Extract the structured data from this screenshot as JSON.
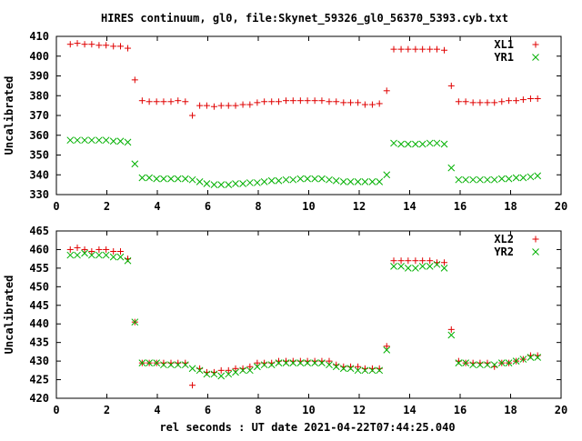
{
  "title": "HIRES continuum, gl0, file:Skynet_59326_gl0_56370_5393.cyb.txt",
  "xlabel": "rel seconds : UT date 2021-04-22T07:44:25.040",
  "colors": {
    "red": "#e00000",
    "green": "#00b000"
  },
  "chart_data": [
    {
      "type": "scatter",
      "ylabel": "Uncalibrated",
      "xlim": [
        0,
        20
      ],
      "ylim": [
        330,
        410
      ],
      "xticks": [
        0,
        2,
        4,
        6,
        8,
        10,
        12,
        14,
        16,
        18,
        20
      ],
      "yticks": [
        330,
        340,
        350,
        360,
        370,
        380,
        390,
        400,
        410
      ],
      "legend_position": "top-right",
      "series": [
        {
          "name": "XL1",
          "marker": "plus",
          "color": "#e00000",
          "x": [
            0.55,
            0.83,
            1.12,
            1.4,
            1.69,
            1.97,
            2.26,
            2.54,
            2.83,
            3.11,
            3.4,
            3.68,
            3.97,
            4.25,
            4.54,
            4.82,
            5.11,
            5.39,
            5.68,
            5.96,
            6.25,
            6.53,
            6.82,
            7.1,
            7.39,
            7.67,
            7.96,
            8.24,
            8.53,
            8.81,
            9.1,
            9.38,
            9.67,
            9.95,
            10.24,
            10.52,
            10.81,
            11.09,
            11.38,
            11.66,
            11.95,
            12.23,
            12.52,
            12.8,
            13.09,
            13.37,
            13.66,
            13.94,
            14.23,
            14.51,
            14.8,
            15.08,
            15.37,
            15.65,
            15.94,
            16.22,
            16.51,
            16.79,
            17.08,
            17.36,
            17.65,
            17.93,
            18.22,
            18.5,
            18.79,
            19.07
          ],
          "y": [
            406,
            406.5,
            406,
            406,
            405.5,
            405.5,
            405,
            405,
            404,
            388,
            377.5,
            377,
            377,
            377,
            377,
            377.5,
            377,
            370,
            375,
            375,
            374.5,
            375,
            375,
            375,
            375.5,
            375.5,
            376.5,
            377,
            377,
            377,
            377.5,
            377.5,
            377.5,
            377.5,
            377.5,
            377.5,
            377,
            377,
            376.5,
            376.5,
            376.5,
            375.5,
            375.5,
            376,
            382.5,
            403.5,
            403.5,
            403.5,
            403.5,
            403.5,
            403.5,
            403.5,
            403,
            385,
            377,
            377,
            376.5,
            376.5,
            376.5,
            376.5,
            377,
            377.5,
            377.5,
            378,
            378.5,
            378.5
          ]
        },
        {
          "name": "YR1",
          "marker": "cross",
          "color": "#00b000",
          "x": [
            0.55,
            0.83,
            1.12,
            1.4,
            1.69,
            1.97,
            2.26,
            2.54,
            2.83,
            3.11,
            3.4,
            3.68,
            3.97,
            4.25,
            4.54,
            4.82,
            5.11,
            5.39,
            5.68,
            5.96,
            6.25,
            6.53,
            6.82,
            7.1,
            7.39,
            7.67,
            7.96,
            8.24,
            8.53,
            8.81,
            9.1,
            9.38,
            9.67,
            9.95,
            10.24,
            10.52,
            10.81,
            11.09,
            11.38,
            11.66,
            11.95,
            12.23,
            12.52,
            12.8,
            13.09,
            13.37,
            13.66,
            13.94,
            14.23,
            14.51,
            14.8,
            15.08,
            15.37,
            15.65,
            15.94,
            16.22,
            16.51,
            16.79,
            17.08,
            17.36,
            17.65,
            17.93,
            18.22,
            18.5,
            18.79,
            19.07
          ],
          "y": [
            357.5,
            357.5,
            357.5,
            357.5,
            357.5,
            357.5,
            357,
            357,
            356.5,
            345.5,
            338.5,
            338.5,
            338,
            338,
            338,
            338,
            338,
            337.5,
            336.5,
            335.5,
            335,
            335,
            335,
            335.5,
            335.5,
            336,
            336,
            336.5,
            337,
            337,
            337.5,
            337.5,
            338,
            338,
            338,
            338,
            337.5,
            337,
            336.5,
            336.5,
            336.5,
            336.5,
            336.5,
            336.5,
            340,
            356,
            355.5,
            355.5,
            355.5,
            355.5,
            356,
            356,
            355.5,
            343.5,
            337.5,
            337.5,
            337.5,
            337.5,
            337.5,
            337.5,
            338,
            338,
            338.5,
            338.5,
            339,
            339.5
          ]
        }
      ]
    },
    {
      "type": "scatter",
      "ylabel": "Uncalibrated",
      "xlim": [
        0,
        20
      ],
      "ylim": [
        420,
        465
      ],
      "xticks": [
        0,
        2,
        4,
        6,
        8,
        10,
        12,
        14,
        16,
        18,
        20
      ],
      "yticks": [
        420,
        425,
        430,
        435,
        440,
        445,
        450,
        455,
        460,
        465
      ],
      "legend_position": "top-right",
      "series": [
        {
          "name": "XL2",
          "marker": "plus",
          "color": "#e00000",
          "x": [
            0.55,
            0.83,
            1.12,
            1.4,
            1.69,
            1.97,
            2.26,
            2.54,
            2.83,
            3.11,
            3.4,
            3.68,
            3.97,
            4.25,
            4.54,
            4.82,
            5.11,
            5.39,
            5.68,
            5.96,
            6.25,
            6.53,
            6.82,
            7.1,
            7.39,
            7.67,
            7.96,
            8.24,
            8.53,
            8.81,
            9.1,
            9.38,
            9.67,
            9.95,
            10.24,
            10.52,
            10.81,
            11.09,
            11.38,
            11.66,
            11.95,
            12.23,
            12.52,
            12.8,
            13.09,
            13.37,
            13.66,
            13.94,
            14.23,
            14.51,
            14.8,
            15.08,
            15.37,
            15.65,
            15.94,
            16.22,
            16.51,
            16.79,
            17.08,
            17.36,
            17.65,
            17.93,
            18.22,
            18.5,
            18.79,
            19.07
          ],
          "y": [
            460,
            460.5,
            460,
            459.5,
            460,
            460,
            459.5,
            459.5,
            457.5,
            440.5,
            429.5,
            429.5,
            429.5,
            429.5,
            429.5,
            429.5,
            429.5,
            423.5,
            428,
            427,
            427,
            427.5,
            427.5,
            428,
            428,
            428.5,
            429.5,
            429.5,
            429.5,
            430,
            430,
            430,
            430,
            430,
            430,
            430,
            430,
            429,
            428.5,
            428.5,
            428.5,
            428,
            428,
            428,
            434,
            457,
            457,
            457,
            457,
            457,
            457,
            456.5,
            456.5,
            438.5,
            430,
            429.5,
            429.5,
            429.5,
            429.5,
            428.5,
            429.5,
            429.5,
            430,
            430.5,
            431.5,
            431.5
          ]
        },
        {
          "name": "YR2",
          "marker": "cross",
          "color": "#00b000",
          "x": [
            0.55,
            0.83,
            1.12,
            1.4,
            1.69,
            1.97,
            2.26,
            2.54,
            2.83,
            3.11,
            3.4,
            3.68,
            3.97,
            4.25,
            4.54,
            4.82,
            5.11,
            5.39,
            5.68,
            5.96,
            6.25,
            6.53,
            6.82,
            7.1,
            7.39,
            7.67,
            7.96,
            8.24,
            8.53,
            8.81,
            9.1,
            9.38,
            9.67,
            9.95,
            10.24,
            10.52,
            10.81,
            11.09,
            11.38,
            11.66,
            11.95,
            12.23,
            12.52,
            12.8,
            13.09,
            13.37,
            13.66,
            13.94,
            14.23,
            14.51,
            14.8,
            15.08,
            15.37,
            15.65,
            15.94,
            16.22,
            16.51,
            16.79,
            17.08,
            17.36,
            17.65,
            17.93,
            18.22,
            18.5,
            18.79,
            19.07
          ],
          "y": [
            458.5,
            458.5,
            459,
            458.5,
            458.5,
            458.5,
            458,
            458,
            457,
            440.5,
            429.5,
            429.5,
            429.5,
            429,
            429,
            429,
            429,
            428,
            427.5,
            426.5,
            426.5,
            426,
            426.5,
            427,
            427.5,
            427.5,
            428.5,
            429,
            429,
            429.5,
            429.5,
            429.5,
            429.5,
            429.5,
            429.5,
            429.5,
            429,
            428.5,
            428,
            428,
            427.5,
            427.5,
            427.5,
            427.5,
            433,
            455.5,
            455.5,
            455,
            455,
            455.5,
            455.5,
            456,
            455,
            437,
            429.5,
            429.5,
            429,
            429,
            429,
            429,
            429.5,
            429.5,
            430,
            430.5,
            431,
            431
          ]
        }
      ]
    }
  ]
}
